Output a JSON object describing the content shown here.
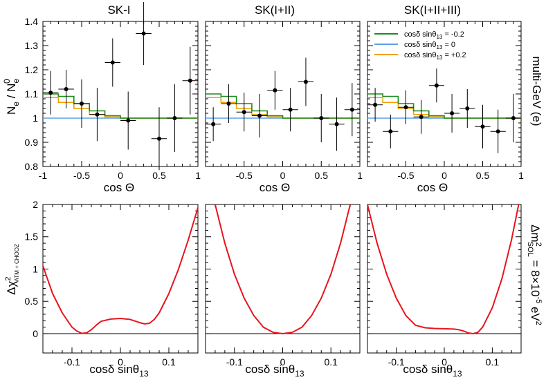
{
  "chart_data": [
    {
      "type": "line",
      "title": "SK-I",
      "xlabel": "cos Θ",
      "ylabel": "N_e / N_e^0",
      "xlim": [
        -1,
        1
      ],
      "ylim": [
        0.8,
        1.4
      ],
      "x_ticks": [
        "-1",
        "-0.5",
        "0",
        "0.5",
        "1"
      ],
      "y_ticks": [
        "0.8",
        "0.9",
        "1",
        "1.1",
        "1.2",
        "1.3",
        "1.4"
      ],
      "points": [
        {
          "x": -0.9,
          "y": 1.105,
          "err": 0.09
        },
        {
          "x": -0.7,
          "y": 1.12,
          "err": 0.08
        },
        {
          "x": -0.5,
          "y": 1.06,
          "err": 0.1
        },
        {
          "x": -0.3,
          "y": 1.015,
          "err": 0.11
        },
        {
          "x": -0.1,
          "y": 1.23,
          "err": 0.1
        },
        {
          "x": 0.1,
          "y": 0.99,
          "err": 0.12
        },
        {
          "x": 0.3,
          "y": 1.35,
          "err": 0.13
        },
        {
          "x": 0.5,
          "y": 0.915,
          "err": 0.13
        },
        {
          "x": 0.7,
          "y": 1.0,
          "err": 0.14
        },
        {
          "x": 0.9,
          "y": 1.155,
          "err": 0.14
        }
      ],
      "series": [
        {
          "values": [
            1.1,
            1.09,
            1.06,
            1.03,
            1.01,
            1.0,
            1.0,
            1.0,
            1.0,
            1.0
          ]
        },
        {
          "values": [
            1.0,
            1.0,
            1.0,
            1.0,
            1.0,
            1.0,
            1.0,
            1.0,
            1.0,
            1.0
          ]
        },
        {
          "values": [
            1.085,
            1.065,
            1.04,
            1.015,
            1.005,
            1.0,
            1.0,
            1.0,
            1.0,
            1.0
          ]
        }
      ]
    },
    {
      "type": "line",
      "title": "SK(I+II)",
      "xlabel": "cos Θ",
      "xlim": [
        -1,
        1
      ],
      "ylim": [
        0.8,
        1.4
      ],
      "x_ticks": [
        "-1",
        "-0.5",
        "0",
        "0.5",
        "1"
      ],
      "points": [
        {
          "x": -0.9,
          "y": 0.975,
          "err": 0.07
        },
        {
          "x": -0.7,
          "y": 1.06,
          "err": 0.08
        },
        {
          "x": -0.5,
          "y": 1.025,
          "err": 0.08
        },
        {
          "x": -0.3,
          "y": 1.01,
          "err": 0.09
        },
        {
          "x": -0.1,
          "y": 1.115,
          "err": 0.08
        },
        {
          "x": 0.1,
          "y": 1.035,
          "err": 0.09
        },
        {
          "x": 0.3,
          "y": 1.15,
          "err": 0.1
        },
        {
          "x": 0.5,
          "y": 1.0,
          "err": 0.1
        },
        {
          "x": 0.7,
          "y": 0.975,
          "err": 0.11
        },
        {
          "x": 0.9,
          "y": 1.035,
          "err": 0.11
        }
      ],
      "series": [
        {
          "values": [
            1.1,
            1.09,
            1.06,
            1.03,
            1.01,
            1.0,
            1.0,
            1.0,
            1.0,
            1.0
          ]
        },
        {
          "values": [
            1.0,
            1.0,
            1.0,
            1.0,
            1.0,
            1.0,
            1.0,
            1.0,
            1.0,
            1.0
          ]
        },
        {
          "values": [
            1.085,
            1.065,
            1.04,
            1.015,
            1.005,
            1.0,
            1.0,
            1.0,
            1.0,
            1.0
          ]
        }
      ]
    },
    {
      "type": "line",
      "title": "SK(I+II+III)",
      "xlabel": "cos Θ",
      "xlim": [
        -1,
        1
      ],
      "ylim": [
        0.8,
        1.4
      ],
      "x_ticks": [
        "-1",
        "-0.5",
        "0",
        "0.5",
        "1"
      ],
      "side_label": "multi-GeV (e)",
      "legend": {
        "placement": "top",
        "entries": [
          {
            "label": "cosδ sinθ13 = -0.2",
            "value": "-0.2",
            "color": "#1a8a1a"
          },
          {
            "label": "cosδ sinθ13 = 0",
            "value": "0",
            "color": "#5aa0e8"
          },
          {
            "label": "cosδ sinθ13 = +0.2",
            "value": "+0.2",
            "color": "#f0a000"
          }
        ]
      },
      "points": [
        {
          "x": -0.9,
          "y": 1.055,
          "err": 0.07
        },
        {
          "x": -0.7,
          "y": 0.945,
          "err": 0.07
        },
        {
          "x": -0.5,
          "y": 1.045,
          "err": 0.07
        },
        {
          "x": -0.3,
          "y": 1.005,
          "err": 0.07
        },
        {
          "x": -0.1,
          "y": 1.135,
          "err": 0.07
        },
        {
          "x": 0.1,
          "y": 1.02,
          "err": 0.08
        },
        {
          "x": 0.3,
          "y": 1.04,
          "err": 0.08
        },
        {
          "x": 0.5,
          "y": 0.965,
          "err": 0.09
        },
        {
          "x": 0.7,
          "y": 0.945,
          "err": 0.09
        },
        {
          "x": 0.9,
          "y": 1.0,
          "err": 0.1
        }
      ],
      "series": [
        {
          "values": [
            1.1,
            1.09,
            1.06,
            1.03,
            1.01,
            1.0,
            1.0,
            1.0,
            1.0,
            1.0
          ]
        },
        {
          "values": [
            1.0,
            1.0,
            1.0,
            1.0,
            1.0,
            1.0,
            1.0,
            1.0,
            1.0,
            1.0
          ]
        },
        {
          "values": [
            1.085,
            1.065,
            1.04,
            1.015,
            1.005,
            1.0,
            1.0,
            1.0,
            1.0,
            1.0
          ]
        }
      ]
    },
    {
      "type": "line",
      "xlabel": "cosδ sinθ13",
      "ylabel": "Δχ²ATM + CHOOZ",
      "xlim": [
        -0.16,
        0.16
      ],
      "ylim": [
        -0.3,
        2.0
      ],
      "x_ticks": [
        "-0.1",
        "0",
        "0.1"
      ],
      "y_ticks": [
        "0",
        "0.5",
        "1",
        "1.5",
        "2"
      ],
      "series": [
        {
          "color": "#e8141c",
          "x": [
            -0.16,
            -0.14,
            -0.12,
            -0.1,
            -0.09,
            -0.08,
            -0.07,
            -0.06,
            -0.05,
            -0.04,
            -0.02,
            0.0,
            0.02,
            0.04,
            0.05,
            0.06,
            0.07,
            0.08,
            0.1,
            0.12,
            0.14,
            0.16
          ],
          "y": [
            1.05,
            0.62,
            0.32,
            0.1,
            0.04,
            0.005,
            0.01,
            0.06,
            0.13,
            0.19,
            0.225,
            0.235,
            0.22,
            0.17,
            0.15,
            0.16,
            0.22,
            0.32,
            0.62,
            1.0,
            1.45,
            1.95
          ]
        }
      ]
    },
    {
      "type": "line",
      "xlabel": "",
      "xlim": [
        -0.16,
        0.16
      ],
      "ylim": [
        -0.3,
        2.0
      ],
      "x_ticks": [
        "-0.1",
        "0",
        "0.1"
      ],
      "series": [
        {
          "color": "#e8141c",
          "x": [
            -0.14,
            -0.12,
            -0.1,
            -0.08,
            -0.06,
            -0.04,
            -0.02,
            0.0,
            0.02,
            0.04,
            0.06,
            0.08,
            0.1,
            0.12,
            0.14
          ],
          "y": [
            2.0,
            1.4,
            0.92,
            0.55,
            0.28,
            0.1,
            0.02,
            0.0,
            0.02,
            0.1,
            0.28,
            0.55,
            0.92,
            1.4,
            2.0
          ]
        }
      ]
    },
    {
      "type": "line",
      "xlabel": "",
      "xlim": [
        -0.16,
        0.16
      ],
      "ylim": [
        -0.3,
        2.0
      ],
      "x_ticks": [
        "-0.1",
        "0",
        "0.1"
      ],
      "side_label": "Δm²SOL = 8×10⁻⁵ eV²",
      "series": [
        {
          "color": "#e8141c",
          "x": [
            -0.16,
            -0.14,
            -0.12,
            -0.1,
            -0.08,
            -0.06,
            -0.04,
            -0.02,
            0.0,
            0.02,
            0.03,
            0.04,
            0.05,
            0.06,
            0.07,
            0.08,
            0.1,
            0.12,
            0.14,
            0.155
          ],
          "y": [
            2.0,
            1.4,
            0.92,
            0.55,
            0.28,
            0.13,
            0.09,
            0.08,
            0.075,
            0.07,
            0.06,
            0.04,
            0.01,
            0.0,
            0.02,
            0.1,
            0.4,
            0.85,
            1.45,
            2.0
          ]
        }
      ]
    }
  ],
  "labels": {
    "title_1": "SK-I",
    "title_2": "SK(I+II)",
    "title_3": "SK(I+II+III)",
    "top_xlabel": "cos Θ",
    "bottom_xlabel": "cosδ sinθ",
    "bottom_xlabel_sub": "13",
    "top_ylabel_main": "N",
    "top_ylabel_sub": "e",
    "top_ylabel_sep": " / N",
    "top_ylabel_sup": "0",
    "top_ylabel_sub2": "e",
    "bottom_ylabel_main": "Δχ",
    "bottom_ylabel_sup": "2",
    "bottom_ylabel_sub": "ATM + CHOOZ",
    "side_top": "multi-GeV (e)",
    "side_bottom_main": "Δm",
    "side_bottom_sup": "2",
    "side_bottom_sub": "SOL",
    "side_bottom_rest": " = 8×10",
    "side_bottom_exp": "-5",
    "side_bottom_unit": " eV",
    "side_bottom_unit_sup": "2",
    "legend_prefix": "cosδ sinθ",
    "legend_sub": "13",
    "legend_eq_1": " = -0.2",
    "legend_eq_2": " =  0",
    "legend_eq_3": " = +0.2",
    "colors": {
      "green": "#1a8a1a",
      "blue": "#5aa0e8",
      "orange": "#f0a000",
      "red": "#e8141c"
    }
  }
}
